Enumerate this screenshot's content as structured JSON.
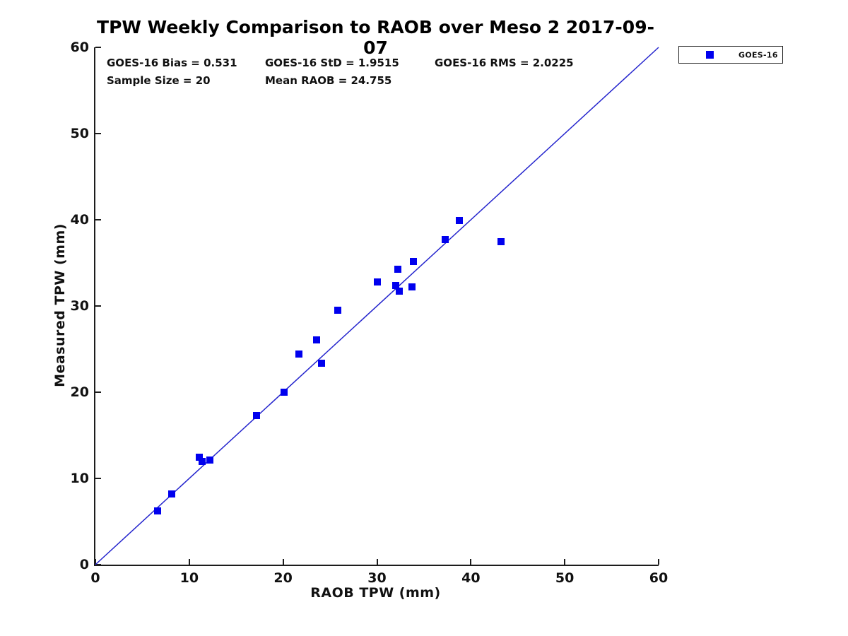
{
  "figure": {
    "title": "TPW Weekly Comparison to RAOB over Meso 2 2017-09-07"
  },
  "stats": {
    "bias": "GOES-16 Bias = 0.531",
    "std": "GOES-16 StD = 1.9515",
    "rms": "GOES-16 RMS = 2.0225",
    "sample_size": "Sample Size = 20",
    "mean_raob": "Mean RAOB = 24.755"
  },
  "legend": {
    "label": "GOES-16",
    "marker_color": "#0000ee"
  },
  "colors": {
    "marker": "#0000ee",
    "reference_line": "#2424cd",
    "axis": "#1c1c1c",
    "text": "#111111"
  },
  "chart_data": {
    "type": "scatter",
    "title": "TPW Weekly Comparison to RAOB over Meso 2 2017-09-07",
    "xlabel": "RAOB TPW (mm)",
    "ylabel": "Measured TPW (mm)",
    "xlim": [
      0,
      60
    ],
    "ylim": [
      0,
      60
    ],
    "xticks": [
      0,
      10,
      20,
      30,
      40,
      50,
      60
    ],
    "yticks": [
      0,
      10,
      20,
      30,
      40,
      50,
      60
    ],
    "grid": false,
    "legend_position": "outside-top-right",
    "series": [
      {
        "name": "GOES-16",
        "marker": "square",
        "color": "#0000ee",
        "points": [
          [
            6.6,
            6.2
          ],
          [
            8.1,
            8.2
          ],
          [
            11.1,
            12.5
          ],
          [
            11.35,
            12.0
          ],
          [
            12.2,
            12.1
          ],
          [
            17.2,
            17.3
          ],
          [
            20.1,
            20.0
          ],
          [
            21.7,
            24.4
          ],
          [
            23.6,
            26.1
          ],
          [
            24.1,
            23.4
          ],
          [
            25.8,
            29.5
          ],
          [
            30.0,
            32.8
          ],
          [
            32.2,
            34.3
          ],
          [
            32.0,
            32.4
          ],
          [
            32.4,
            31.7
          ],
          [
            33.7,
            32.2
          ],
          [
            33.9,
            35.2
          ],
          [
            37.3,
            37.7
          ],
          [
            38.8,
            39.9
          ],
          [
            43.2,
            37.5
          ]
        ]
      }
    ],
    "reference_line": {
      "from": [
        0,
        0
      ],
      "to": [
        60,
        60
      ],
      "color": "#2424cd"
    },
    "annotations": [
      "GOES-16 Bias = 0.531",
      "GOES-16 StD = 1.9515",
      "GOES-16 RMS = 2.0225",
      "Sample Size = 20",
      "Mean RAOB = 24.755"
    ]
  }
}
